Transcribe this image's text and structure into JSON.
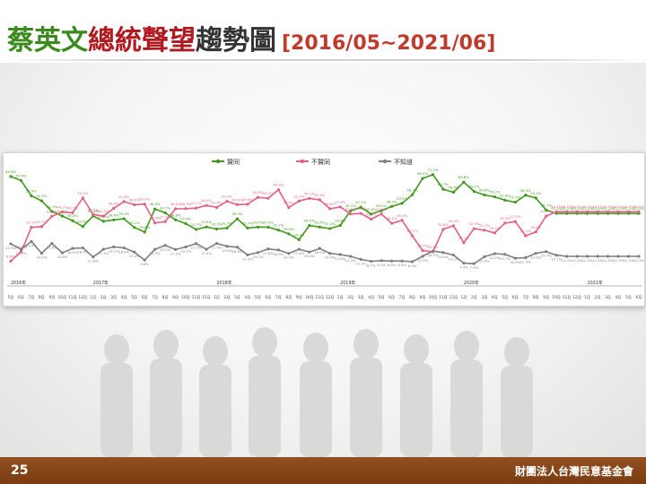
{
  "slide": {
    "title_part1": "蔡英文",
    "title_part2": "總統聲望",
    "title_part3": "趨勢圖",
    "title_range": "[2016/05~2021/06]",
    "page_number": "25",
    "organization": "財團法人台灣民意基金會"
  },
  "colors": {
    "approve": "#3f9a1c",
    "disapprove": "#e35f86",
    "unknown": "#7f7f7f",
    "footer": "#8b4513",
    "title_green": "#3a8a1e",
    "title_red": "#b0191f"
  },
  "chart_data": {
    "type": "line",
    "legend_position": "top-center",
    "grid": false,
    "ylim": [
      0,
      75
    ],
    "year_labels": [
      {
        "label": "2016年",
        "index": 0
      },
      {
        "label": "2017年",
        "index": 8
      },
      {
        "label": "2018年",
        "index": 20
      },
      {
        "label": "2019年",
        "index": 32
      },
      {
        "label": "2020年",
        "index": 44
      },
      {
        "label": "2021年",
        "index": 56
      }
    ],
    "categories": [
      "5月",
      "6月",
      "7月",
      "8月",
      "9月",
      "10月",
      "11月",
      "12月",
      "1月",
      "2月",
      "3月",
      "4月",
      "5月",
      "6月",
      "7月",
      "8月",
      "9月",
      "10月",
      "11月",
      "12月",
      "1月",
      "2月",
      "3月",
      "4月",
      "5月",
      "6月",
      "7月",
      "8月",
      "9月",
      "10月",
      "11月",
      "12月",
      "1月",
      "2月",
      "3月",
      "4月",
      "5月",
      "6月",
      "7月",
      "8月",
      "9月",
      "10月",
      "11月",
      "12月",
      "1月",
      "2月",
      "3月",
      "4月",
      "5月",
      "6月",
      "7月",
      "8月",
      "9月",
      "10月",
      "11月",
      "12月",
      "1月",
      "2月",
      "3月",
      "4月",
      "5月",
      "6月"
    ],
    "series": [
      {
        "name": "贊同",
        "color": "#3f9a1c",
        "values": [
          69.9,
          67.0,
          55.9,
          52.3,
          44.7,
          41.4,
          38.0,
          33.8,
          41.4,
          37.6,
          38.6,
          39.4,
          33.1,
          29.8,
          46.4,
          43.7,
          38.6,
          35.9,
          31.7,
          33.5,
          32.0,
          32.7,
          39.3,
          32.7,
          33.4,
          33.3,
          31.2,
          28.5,
          24.3,
          34.5,
          33.4,
          32.3,
          34.6,
          45.1,
          47.7,
          42.8,
          45.2,
          48.3,
          50.5,
          56.7,
          68.5,
          71.2,
          60.7,
          58.5,
          65.8,
          59.1,
          56.6,
          55.2,
          52.8,
          51.3,
          56.4,
          54.4,
          45.7,
          43.2,
          43.2,
          43.2,
          43.2,
          43.2,
          43.2,
          43.2,
          43.2,
          43.2
        ]
      },
      {
        "name": "不贊同",
        "color": "#e35f86",
        "values": [
          8.8,
          15.6,
          33.2,
          33.7,
          41.2,
          44.2,
          43.7,
          54.4,
          42.5,
          41.3,
          46.9,
          51.8,
          49.5,
          50.0,
          36.4,
          37.3,
          46.6,
          46.7,
          47.1,
          49.0,
          47.6,
          52.0,
          49.6,
          49.9,
          54.8,
          54.2,
          60.3,
          47.5,
          52.2,
          54.1,
          53.1,
          46.6,
          47.9,
          42.8,
          43.2,
          39.1,
          42.8,
          36.1,
          38.3,
          27.1,
          16.5,
          15.6,
          31.8,
          34.4,
          22.1,
          32.3,
          31.1,
          29.2,
          36.3,
          37.4,
          27.1,
          29.9,
          41.3,
          44.5,
          44.5,
          44.5,
          44.5,
          44.5,
          44.5,
          44.5,
          44.5,
          44.5
        ]
      },
      {
        "name": "不知道",
        "color": "#7f7f7f",
        "values": [
          21.3,
          17.4,
          23.0,
          14.5,
          21.6,
          14.8,
          18.0,
          18.4,
          11.8,
          17.4,
          19.1,
          18.4,
          15.4,
          9.6,
          17.3,
          20.2,
          17.2,
          19.1,
          21.5,
          17.4,
          21.6,
          19.5,
          18.9,
          13.3,
          15.0,
          17.6,
          16.9,
          14.4,
          17.4,
          15.4,
          18.0,
          14.4,
          13.6,
          12.3,
          10.1,
          8.7,
          9.2,
          8.9,
          8.9,
          8.4,
          12.3,
          16.1,
          15.0,
          13.2,
          7.4,
          7.0,
          12.0,
          14.2,
          13.7,
          10.9,
          11.3,
          14.5,
          15.7,
          13.1,
          12.3,
          12.3,
          12.3,
          12.3,
          12.3,
          12.3,
          12.3,
          12.3
        ]
      }
    ]
  }
}
